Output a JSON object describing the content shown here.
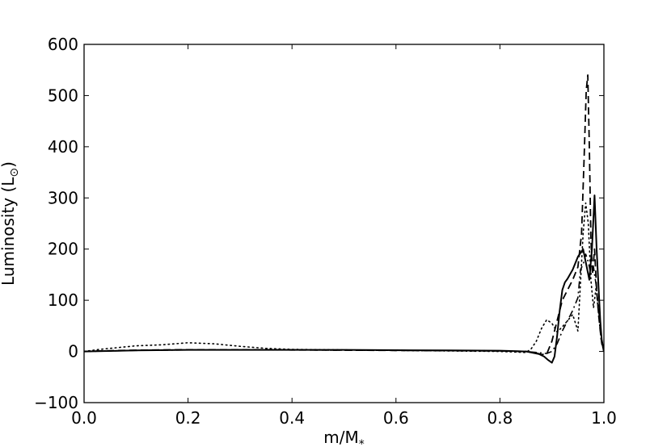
{
  "chart_data": {
    "type": "line",
    "title": "",
    "xlabel": "m/M",
    "xlabel_subscript": "*",
    "ylabel": "Luminosity (L",
    "ylabel_suffix": ")",
    "ylabel_symbol": "sun",
    "xlim": [
      0.0,
      1.0
    ],
    "ylim": [
      -100,
      600
    ],
    "xticks": [
      0.0,
      0.2,
      0.4,
      0.6,
      0.8,
      1.0
    ],
    "xtick_labels": [
      "0.0",
      "0.2",
      "0.4",
      "0.6",
      "0.8",
      "1.0"
    ],
    "yticks": [
      -100,
      0,
      100,
      200,
      300,
      400,
      500,
      600
    ],
    "ytick_labels": [
      "−100",
      "0",
      "100",
      "200",
      "300",
      "400",
      "500",
      "600"
    ],
    "grid": false,
    "legend": "none",
    "series": [
      {
        "style": "solid",
        "color": "#000000",
        "x": [
          0.0,
          0.05,
          0.1,
          0.2,
          0.3,
          0.4,
          0.5,
          0.6,
          0.7,
          0.8,
          0.85,
          0.875,
          0.885,
          0.893,
          0.9,
          0.905,
          0.91,
          0.915,
          0.92,
          0.925,
          0.93,
          0.94,
          0.95,
          0.96,
          0.966,
          0.972,
          0.977,
          0.982,
          0.986,
          0.99,
          0.993,
          0.996,
          1.0
        ],
        "y": [
          0,
          1,
          2,
          3,
          3,
          3,
          3,
          2.5,
          2,
          1.5,
          0,
          -5,
          -10,
          -17,
          -22,
          -10,
          30,
          80,
          120,
          135,
          142,
          160,
          185,
          200,
          170,
          140,
          200,
          305,
          200,
          120,
          60,
          20,
          0
        ]
      },
      {
        "style": "dashed",
        "color": "#000000",
        "x": [
          0.0,
          0.05,
          0.1,
          0.2,
          0.3,
          0.4,
          0.5,
          0.6,
          0.7,
          0.8,
          0.85,
          0.87,
          0.88,
          0.89,
          0.9,
          0.91,
          0.92,
          0.93,
          0.94,
          0.95,
          0.957,
          0.962,
          0.966,
          0.969,
          0.972,
          0.975,
          0.978,
          0.982,
          0.986,
          0.99,
          0.993,
          0.996,
          1.0
        ],
        "y": [
          0,
          1.5,
          2.5,
          3.5,
          3.5,
          3,
          2.5,
          2,
          1.5,
          1,
          0,
          -3,
          -6,
          -5,
          20,
          60,
          100,
          120,
          140,
          165,
          230,
          380,
          510,
          540,
          400,
          220,
          150,
          200,
          120,
          70,
          40,
          15,
          0
        ]
      },
      {
        "style": "dotted",
        "color": "#000000",
        "x": [
          0.0,
          0.03,
          0.06,
          0.1,
          0.15,
          0.2,
          0.25,
          0.3,
          0.35,
          0.4,
          0.5,
          0.6,
          0.7,
          0.8,
          0.85,
          0.86,
          0.87,
          0.88,
          0.89,
          0.9,
          0.91,
          0.92,
          0.93,
          0.94,
          0.95,
          0.96,
          0.965,
          0.97,
          0.975,
          0.98,
          0.985,
          0.99,
          0.995,
          1.0
        ],
        "y": [
          0,
          4,
          7,
          11,
          13,
          17,
          15,
          10,
          6,
          4,
          3,
          2,
          1,
          0,
          -2,
          5,
          20,
          45,
          62,
          55,
          38,
          48,
          60,
          72,
          40,
          230,
          290,
          250,
          140,
          85,
          125,
          70,
          20,
          0
        ]
      },
      {
        "style": "dashdot",
        "color": "#000000",
        "x": [
          0.0,
          0.1,
          0.2,
          0.3,
          0.4,
          0.5,
          0.6,
          0.7,
          0.8,
          0.85,
          0.87,
          0.89,
          0.9,
          0.91,
          0.92,
          0.93,
          0.94,
          0.95,
          0.955,
          0.96,
          0.965,
          0.97,
          0.975,
          0.98,
          0.985,
          0.99,
          0.995,
          1.0
        ],
        "y": [
          0,
          2,
          3,
          3,
          3,
          2.5,
          2,
          1.5,
          1,
          0,
          -2,
          -4,
          0,
          15,
          40,
          60,
          80,
          105,
          160,
          170,
          190,
          175,
          150,
          165,
          130,
          80,
          30,
          0
        ]
      }
    ]
  }
}
